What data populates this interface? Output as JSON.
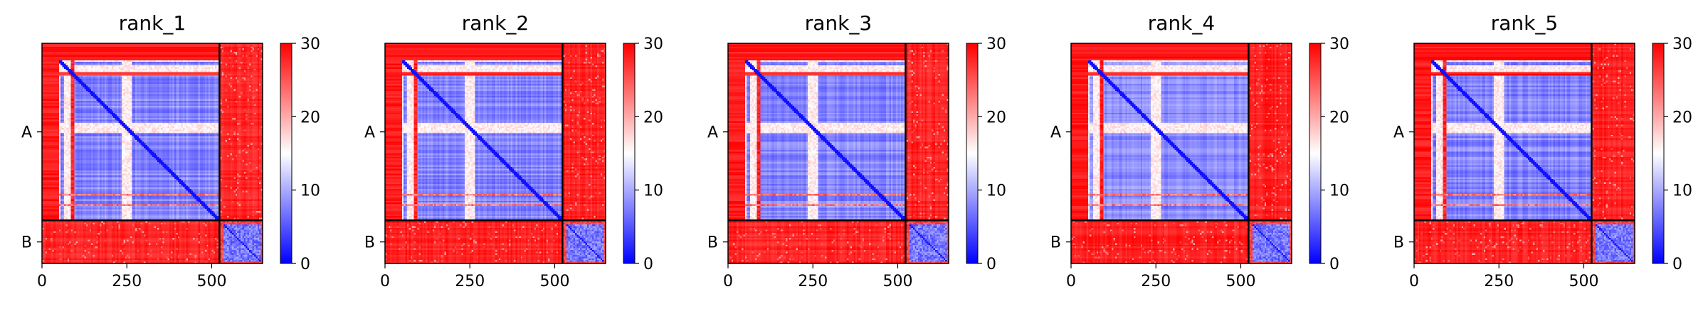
{
  "chart_data": {
    "type": "heatmap",
    "description": "Predicted aligned error (PAE) matrices for five ranked models of a two-chain complex",
    "colorbar": {
      "ticks": [
        0,
        10,
        20,
        30
      ],
      "range": [
        0,
        30
      ],
      "colors": {
        "low": "#0000ff",
        "mid": "#ffffff",
        "high": "#ff0000"
      }
    },
    "x_ticks": [
      0,
      250,
      500
    ],
    "x_range": [
      0,
      650
    ],
    "chain_boundary": 523,
    "chains": [
      {
        "label": "A",
        "start": 0,
        "end": 523
      },
      {
        "label": "B",
        "start": 523,
        "end": 650
      }
    ],
    "panels": [
      {
        "title": "rank_1"
      },
      {
        "title": "rank_2"
      },
      {
        "title": "rank_3"
      },
      {
        "title": "rank_4"
      },
      {
        "title": "rank_5"
      }
    ]
  }
}
